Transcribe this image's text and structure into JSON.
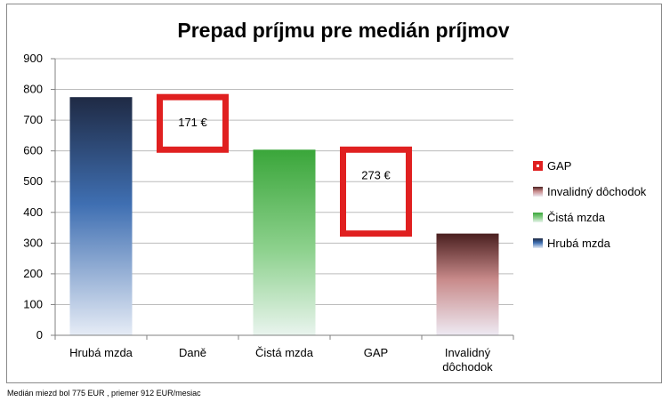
{
  "chart_data": {
    "type": "bar",
    "title": "Prepad príjmu pre medián príjmov",
    "xlabel": "",
    "ylabel": "",
    "ylim": [
      0,
      900
    ],
    "yticks": [
      0,
      100,
      200,
      300,
      400,
      500,
      600,
      700,
      800,
      900
    ],
    "grid": true,
    "legend_position": "right",
    "categories": [
      "Hrubá mzda",
      "Daně",
      "Čistá  mzda",
      "GAP",
      "Invalidný dôchodok"
    ],
    "series": [
      {
        "name": "Hrubá mzda",
        "color": "#3d6db0",
        "values": [
          775,
          null,
          null,
          null,
          null
        ]
      },
      {
        "name": "Čistá  mzda",
        "color": "#4caf50",
        "values": [
          null,
          null,
          604,
          null,
          null
        ]
      },
      {
        "name": "Invalidný dôchodok",
        "color": "#7a3a36",
        "values": [
          null,
          null,
          null,
          null,
          331
        ]
      },
      {
        "name": "GAP",
        "color": "#e02020",
        "values": [
          null,
          171,
          null,
          273,
          null
        ]
      }
    ],
    "annotations": [
      {
        "text": "171 €",
        "category": "Daně",
        "range": [
          604,
          775
        ]
      },
      {
        "text": "273 €",
        "category": "GAP",
        "range": [
          331,
          604
        ]
      }
    ],
    "legend": [
      {
        "label": "GAP",
        "color": "#e02020"
      },
      {
        "label": "Invalidný dôchodok",
        "color": "#7a3a36"
      },
      {
        "label": "Čistá  mzda",
        "color": "#4caf50"
      },
      {
        "label": "Hrubá mzda",
        "color": "#3d6db0"
      }
    ]
  },
  "footnote": "Medián miezd bol 775 EUR , priemer 912 EUR/mesiac"
}
